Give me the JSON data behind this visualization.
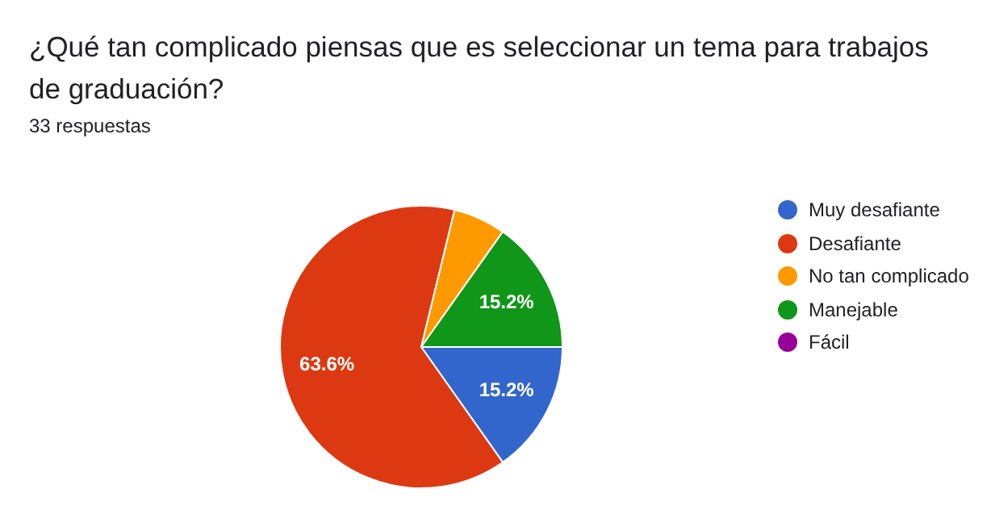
{
  "chart_data": {
    "type": "pie",
    "title": "¿Qué tan complicado piensas que es seleccionar un tema para trabajos de graduación?",
    "subtitle": "33 respuestas",
    "categories": [
      "Muy desafiante",
      "Desafiante",
      "No tan complicado",
      "Manejable",
      "Fácil"
    ],
    "values": [
      15.2,
      63.6,
      6.0,
      15.2,
      0
    ],
    "colors": [
      "#3366cc",
      "#dc3912",
      "#ff9900",
      "#109618",
      "#990099"
    ],
    "value_labels": [
      "15.2%",
      "63.6%",
      null,
      "15.2%",
      null
    ],
    "legend": "right"
  }
}
